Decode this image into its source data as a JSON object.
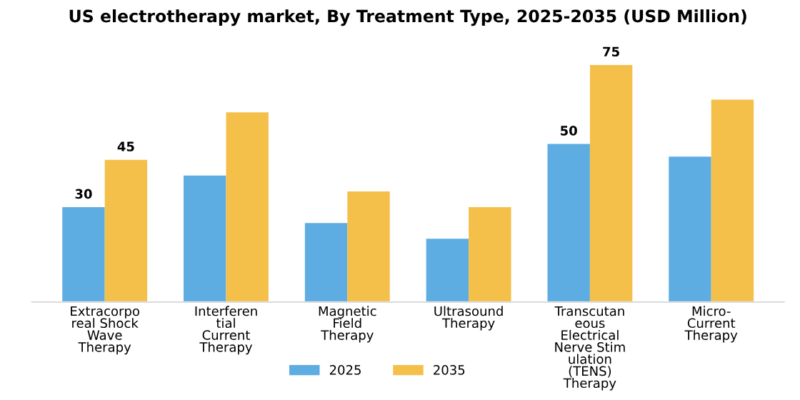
{
  "chart_data": {
    "type": "bar",
    "title": "US electrotherapy market, By Treatment Type, 2025-2035 (USD Million)",
    "categories": [
      "Extracorpo\nreal Shock\nWave\nTherapy",
      "Interferen\ntial\nCurrent\nTherapy",
      "Magnetic\nField\nTherapy",
      "Ultrasound\nTherapy",
      "Transcutan\neous\nElectrical\nNerve Stim\nulation\n(TENS)\nTherapy",
      "Micro-\nCurrent\nTherapy"
    ],
    "series": [
      {
        "name": "2025",
        "color": "#5dade2",
        "values": [
          30,
          40,
          25,
          20,
          50,
          46
        ],
        "value_labels": [
          "30",
          null,
          null,
          null,
          "50",
          null
        ]
      },
      {
        "name": "2035",
        "color": "#f5c04a",
        "values": [
          45,
          60,
          35,
          30,
          75,
          64
        ],
        "value_labels": [
          "45",
          null,
          null,
          null,
          "75",
          null
        ]
      }
    ],
    "legend": "bottom",
    "grid": false
  }
}
